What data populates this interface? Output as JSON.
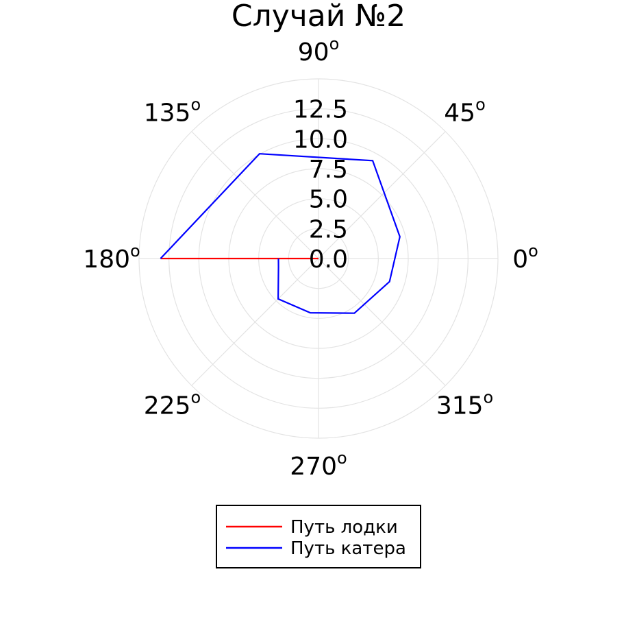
{
  "chart_data": {
    "type": "line",
    "projection": "polar",
    "title": "Случай №2",
    "angle_ticks": [
      {
        "value": 0,
        "label": "0",
        "sup": "o"
      },
      {
        "value": 45,
        "label": "45",
        "sup": "o"
      },
      {
        "value": 90,
        "label": "90",
        "sup": "o"
      },
      {
        "value": 135,
        "label": "135",
        "sup": "o"
      },
      {
        "value": 180,
        "label": "180",
        "sup": "o"
      },
      {
        "value": 225,
        "label": "225",
        "sup": "o"
      },
      {
        "value": 270,
        "label": "270",
        "sup": "o"
      },
      {
        "value": 315,
        "label": "315",
        "sup": "o"
      }
    ],
    "radial_ticks": [
      "0.0",
      "2.5",
      "5.0",
      "7.5",
      "10.0",
      "12.5"
    ],
    "radial_tick_values": [
      0,
      2.5,
      5.0,
      7.5,
      10.0,
      12.5
    ],
    "rlim": [
      0,
      15
    ],
    "grid": true,
    "legend_position": "bottom-center",
    "series": [
      {
        "name": "Путь лодки",
        "color": "#ff0000",
        "theta_deg": [
          180,
          180
        ],
        "r": [
          0,
          13.2
        ]
      },
      {
        "name": "Путь катера",
        "color": "#0000ff",
        "theta_deg": [
          180,
          191.5,
          225,
          261.4,
          303.3,
          342,
          15,
          61,
          119.4,
          180
        ],
        "r": [
          3.35,
          3.41,
          4.77,
          4.58,
          5.46,
          6.24,
          7.04,
          9.34,
          10.04,
          13.2
        ]
      }
    ]
  }
}
